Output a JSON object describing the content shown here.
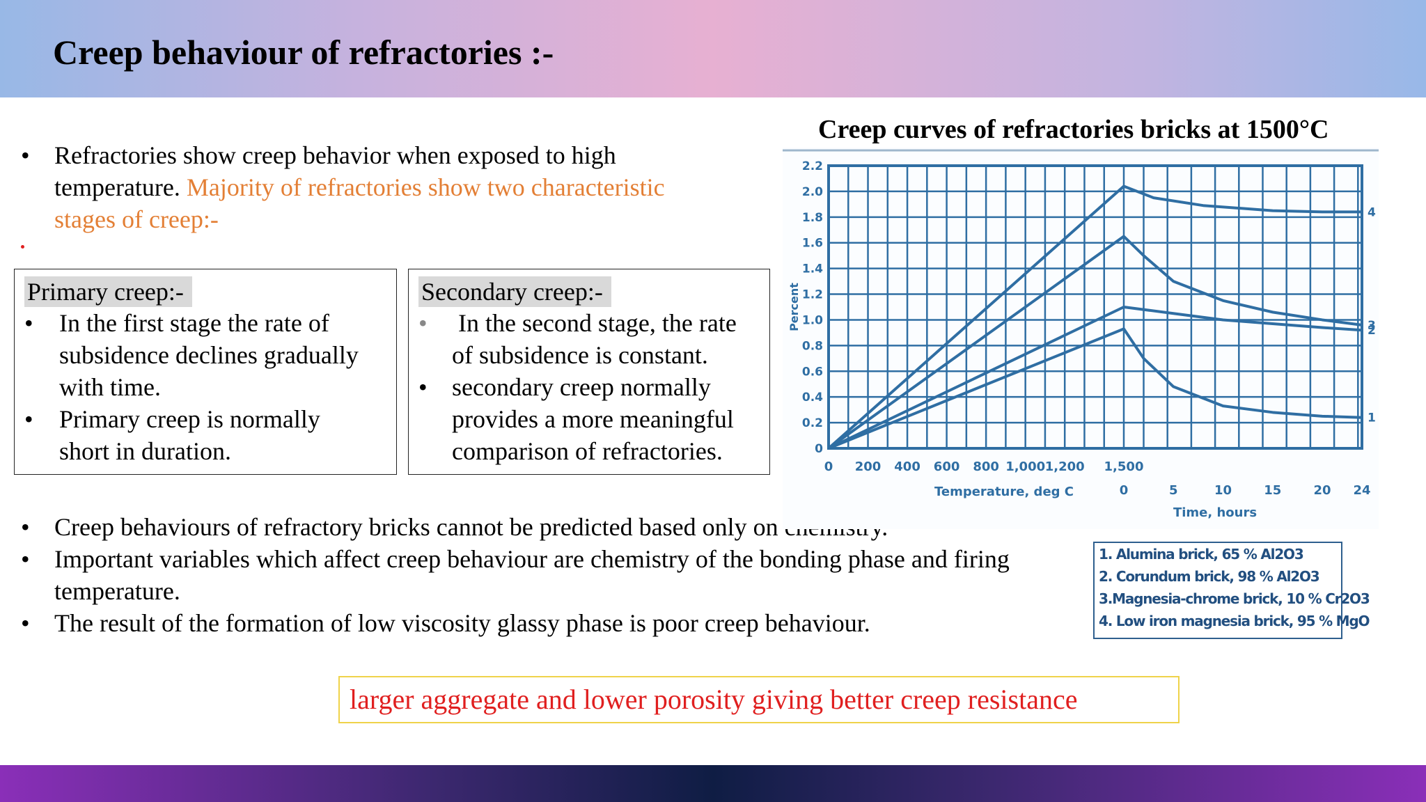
{
  "slide": {
    "title": "Creep behaviour of refractories :-"
  },
  "intro": {
    "bullet": "•",
    "text_plain": "Refractories show creep behavior when exposed to high temperature.",
    "text_line1": "Refractories show creep behavior when exposed to high",
    "text_line2_plain": "temperature. ",
    "text_line2_orange": "Majority of refractories show two characteristic",
    "text_line3_orange": "stages of creep:-"
  },
  "primary_box": {
    "heading": "Primary creep:-",
    "items": [
      {
        "bullet": "•",
        "lines": [
          "In the first stage the rate of",
          "subsidence declines gradually",
          "with time."
        ]
      },
      {
        "bullet": "•",
        "lines": [
          "Primary creep is normally",
          "short in duration."
        ]
      }
    ]
  },
  "secondary_box": {
    "heading": "Secondary creep:-",
    "items": [
      {
        "bullet": "•",
        "lines": [
          " In the second stage, the rate",
          "of subsidence is constant."
        ]
      },
      {
        "bullet": "•",
        "lines": [
          "secondary creep normally",
          "provides a more meaningful",
          "comparison of refractories."
        ]
      }
    ]
  },
  "bottom_bullets": [
    {
      "bullet": "•",
      "lines": [
        "Creep behaviours of refractory bricks cannot be predicted based only on chemistry."
      ]
    },
    {
      "bullet": "•",
      "lines": [
        "Important variables which affect creep behaviour are chemistry of the bonding phase and firing",
        "temperature."
      ]
    },
    {
      "bullet": "•",
      "lines": [
        "The result of the formation of low viscosity glassy phase is poor creep behaviour."
      ]
    }
  ],
  "callout": {
    "text": "larger aggregate and lower porosity giving better creep resistance"
  },
  "legend": {
    "items": [
      "1. Alumina brick, 65 % Al2O3",
      "2. Corundum brick, 98 % Al2O3",
      "3.Magnesia-chrome brick, 10 % Cr2O3",
      "4. Low iron magnesia brick, 95 % MgO"
    ]
  },
  "colors": {
    "chart_blue": "#2f6ea3",
    "orange_text": "#e37f35",
    "callout_red": "#e01f1f",
    "callout_border": "#efd34a"
  },
  "chart_data": {
    "type": "line",
    "title": "Creep curves of refractories bricks at 1500°C",
    "ylabel": "Percent",
    "ylim": [
      0,
      2.2
    ],
    "y_ticks": [
      "0",
      "0.2",
      "0.4",
      "0.6",
      "0.8",
      "1.0",
      "1.2",
      "1.4",
      "1.6",
      "1.8",
      "2.0",
      "2.2"
    ],
    "x_temp": {
      "label": "Temperature, deg C",
      "ticks": [
        "0",
        "200",
        "400",
        "600",
        "800",
        "1,000",
        "1,200",
        "1,500"
      ],
      "range": [
        0,
        1500
      ]
    },
    "x_time": {
      "label": "Time, hours",
      "ticks": [
        "0",
        "5",
        "10",
        "15",
        "20",
        "24"
      ],
      "range": [
        0,
        24
      ]
    },
    "series": [
      {
        "name": "1",
        "heating": [
          [
            0,
            0
          ],
          [
            1500,
            0.93
          ]
        ],
        "hold": [
          [
            0,
            0.93
          ],
          [
            2,
            0.7
          ],
          [
            5,
            0.48
          ],
          [
            10,
            0.33
          ],
          [
            15,
            0.28
          ],
          [
            20,
            0.25
          ],
          [
            24,
            0.24
          ]
        ]
      },
      {
        "name": "2",
        "heating": [
          [
            0,
            0
          ],
          [
            1500,
            1.1
          ]
        ],
        "hold": [
          [
            0,
            1.1
          ],
          [
            5,
            1.05
          ],
          [
            10,
            1.0
          ],
          [
            15,
            0.97
          ],
          [
            20,
            0.94
          ],
          [
            24,
            0.92
          ]
        ]
      },
      {
        "name": "3",
        "heating": [
          [
            0,
            0
          ],
          [
            1500,
            1.65
          ]
        ],
        "hold": [
          [
            0,
            1.65
          ],
          [
            2,
            1.5
          ],
          [
            5,
            1.3
          ],
          [
            10,
            1.15
          ],
          [
            15,
            1.06
          ],
          [
            20,
            1.0
          ],
          [
            24,
            0.96
          ]
        ]
      },
      {
        "name": "4",
        "heating": [
          [
            0,
            0
          ],
          [
            1500,
            2.04
          ]
        ],
        "hold": [
          [
            0,
            2.04
          ],
          [
            3,
            1.95
          ],
          [
            8,
            1.89
          ],
          [
            15,
            1.85
          ],
          [
            20,
            1.84
          ],
          [
            24,
            1.84
          ]
        ]
      }
    ]
  }
}
